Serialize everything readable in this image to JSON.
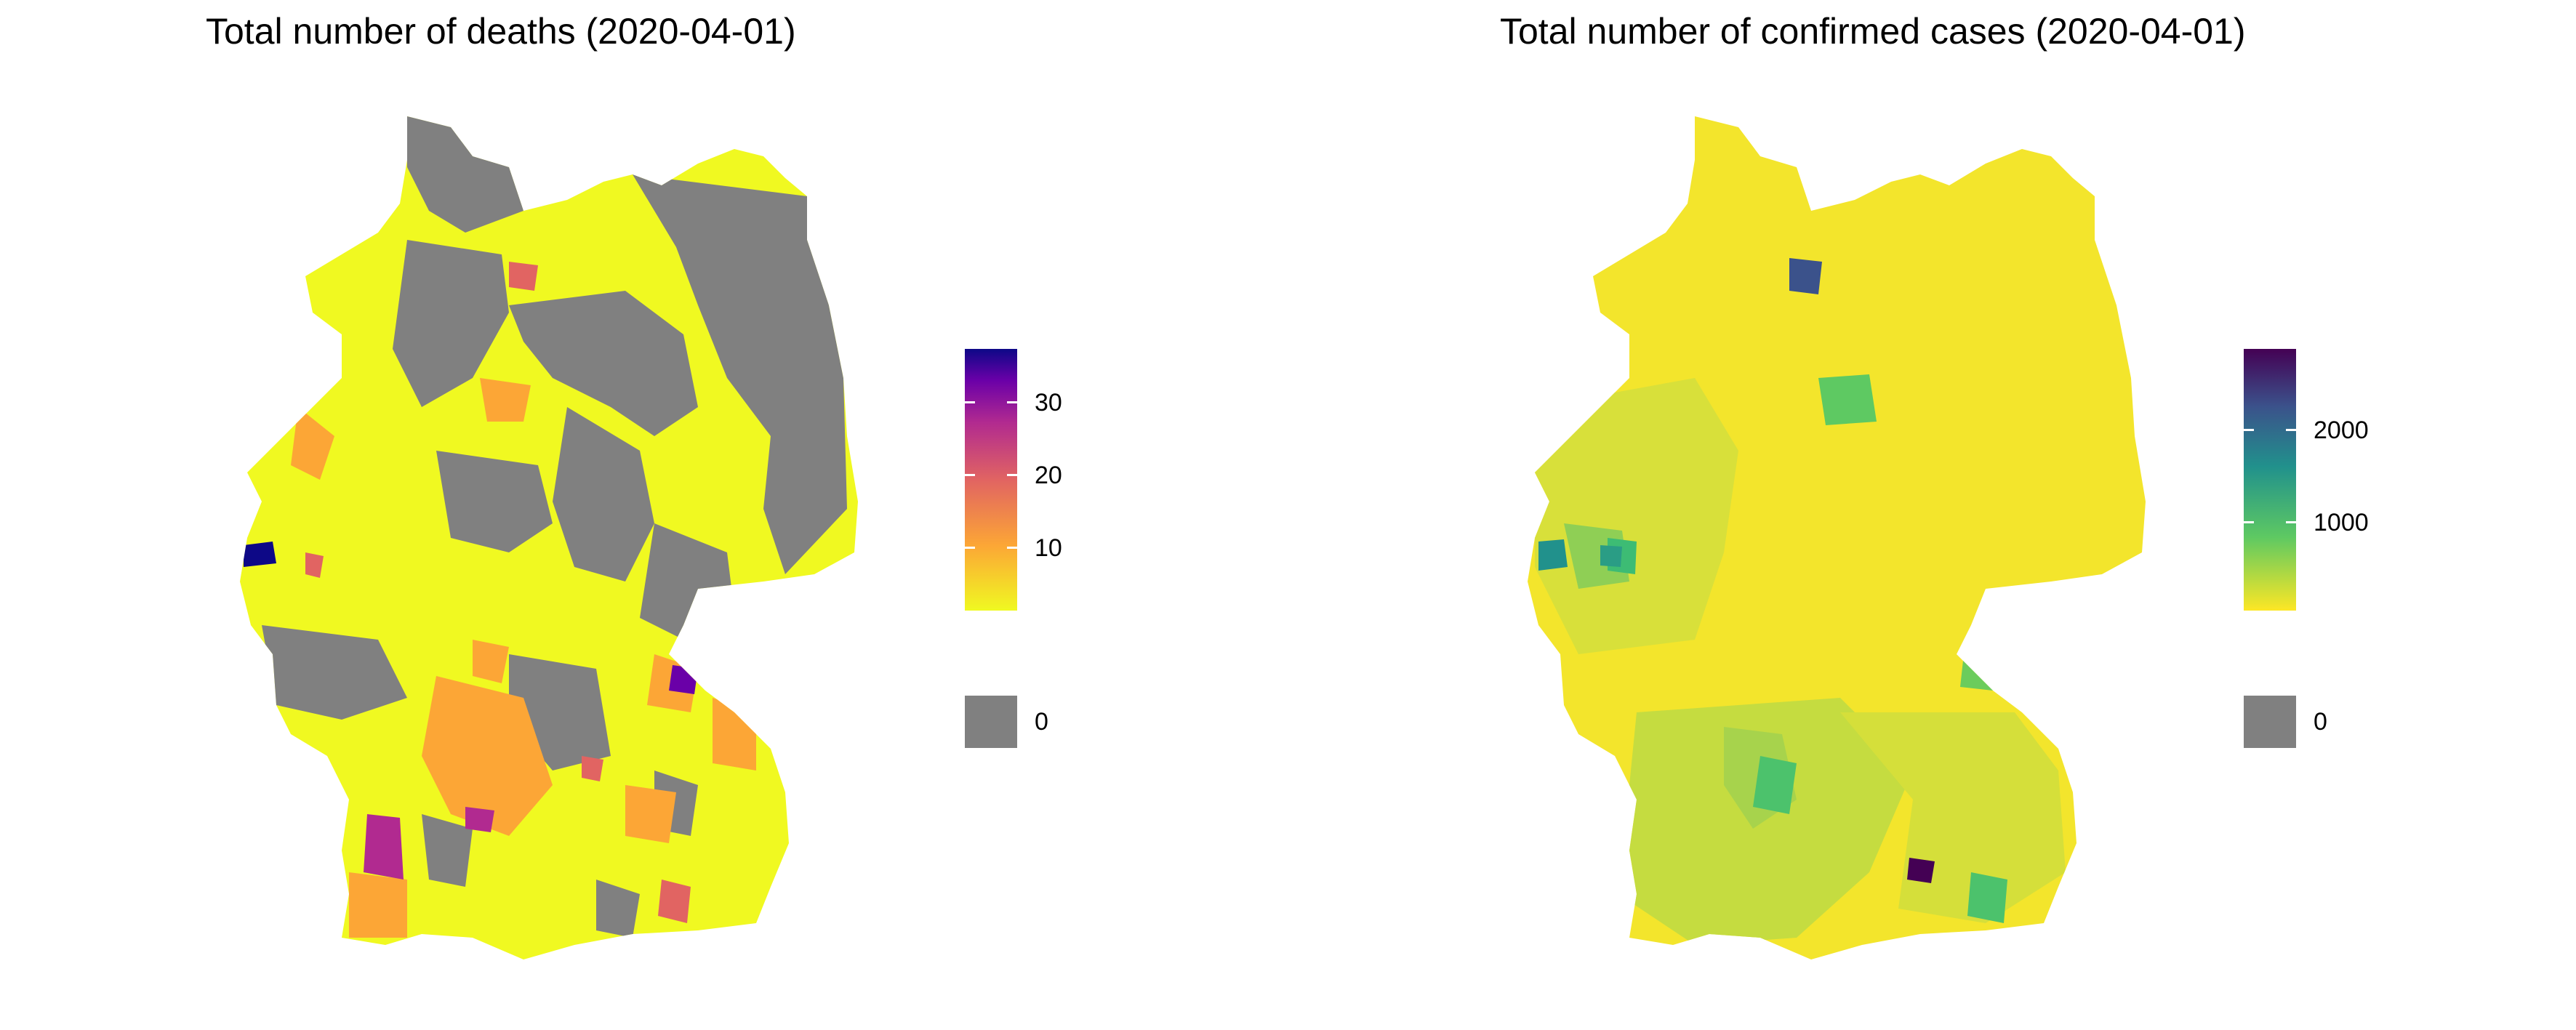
{
  "maps": [
    {
      "title": "Total number of deaths (2020-04-01)",
      "legend": {
        "ticks": [
          {
            "value": 10,
            "label": "10"
          },
          {
            "value": 20,
            "label": "20"
          },
          {
            "value": 30,
            "label": "30"
          }
        ],
        "range": [
          1,
          36
        ],
        "scale": "plasma",
        "colors": [
          "#f0f921",
          "#fca636",
          "#e16462",
          "#b12a90",
          "#6a00a8",
          "#0d0887"
        ],
        "zero_label": "0",
        "zero_color": "#808080"
      }
    },
    {
      "title": "Total number of confirmed cases (2020-04-01)",
      "legend": {
        "ticks": [
          {
            "value": 1000,
            "label": "1000"
          },
          {
            "value": 2000,
            "label": "2000"
          }
        ],
        "range": [
          1,
          2800
        ],
        "scale": "viridis",
        "colors": [
          "#fde725",
          "#5ec962",
          "#21918c",
          "#3b528b",
          "#440154"
        ],
        "zero_label": "0",
        "zero_color": "#808080"
      }
    }
  ]
}
